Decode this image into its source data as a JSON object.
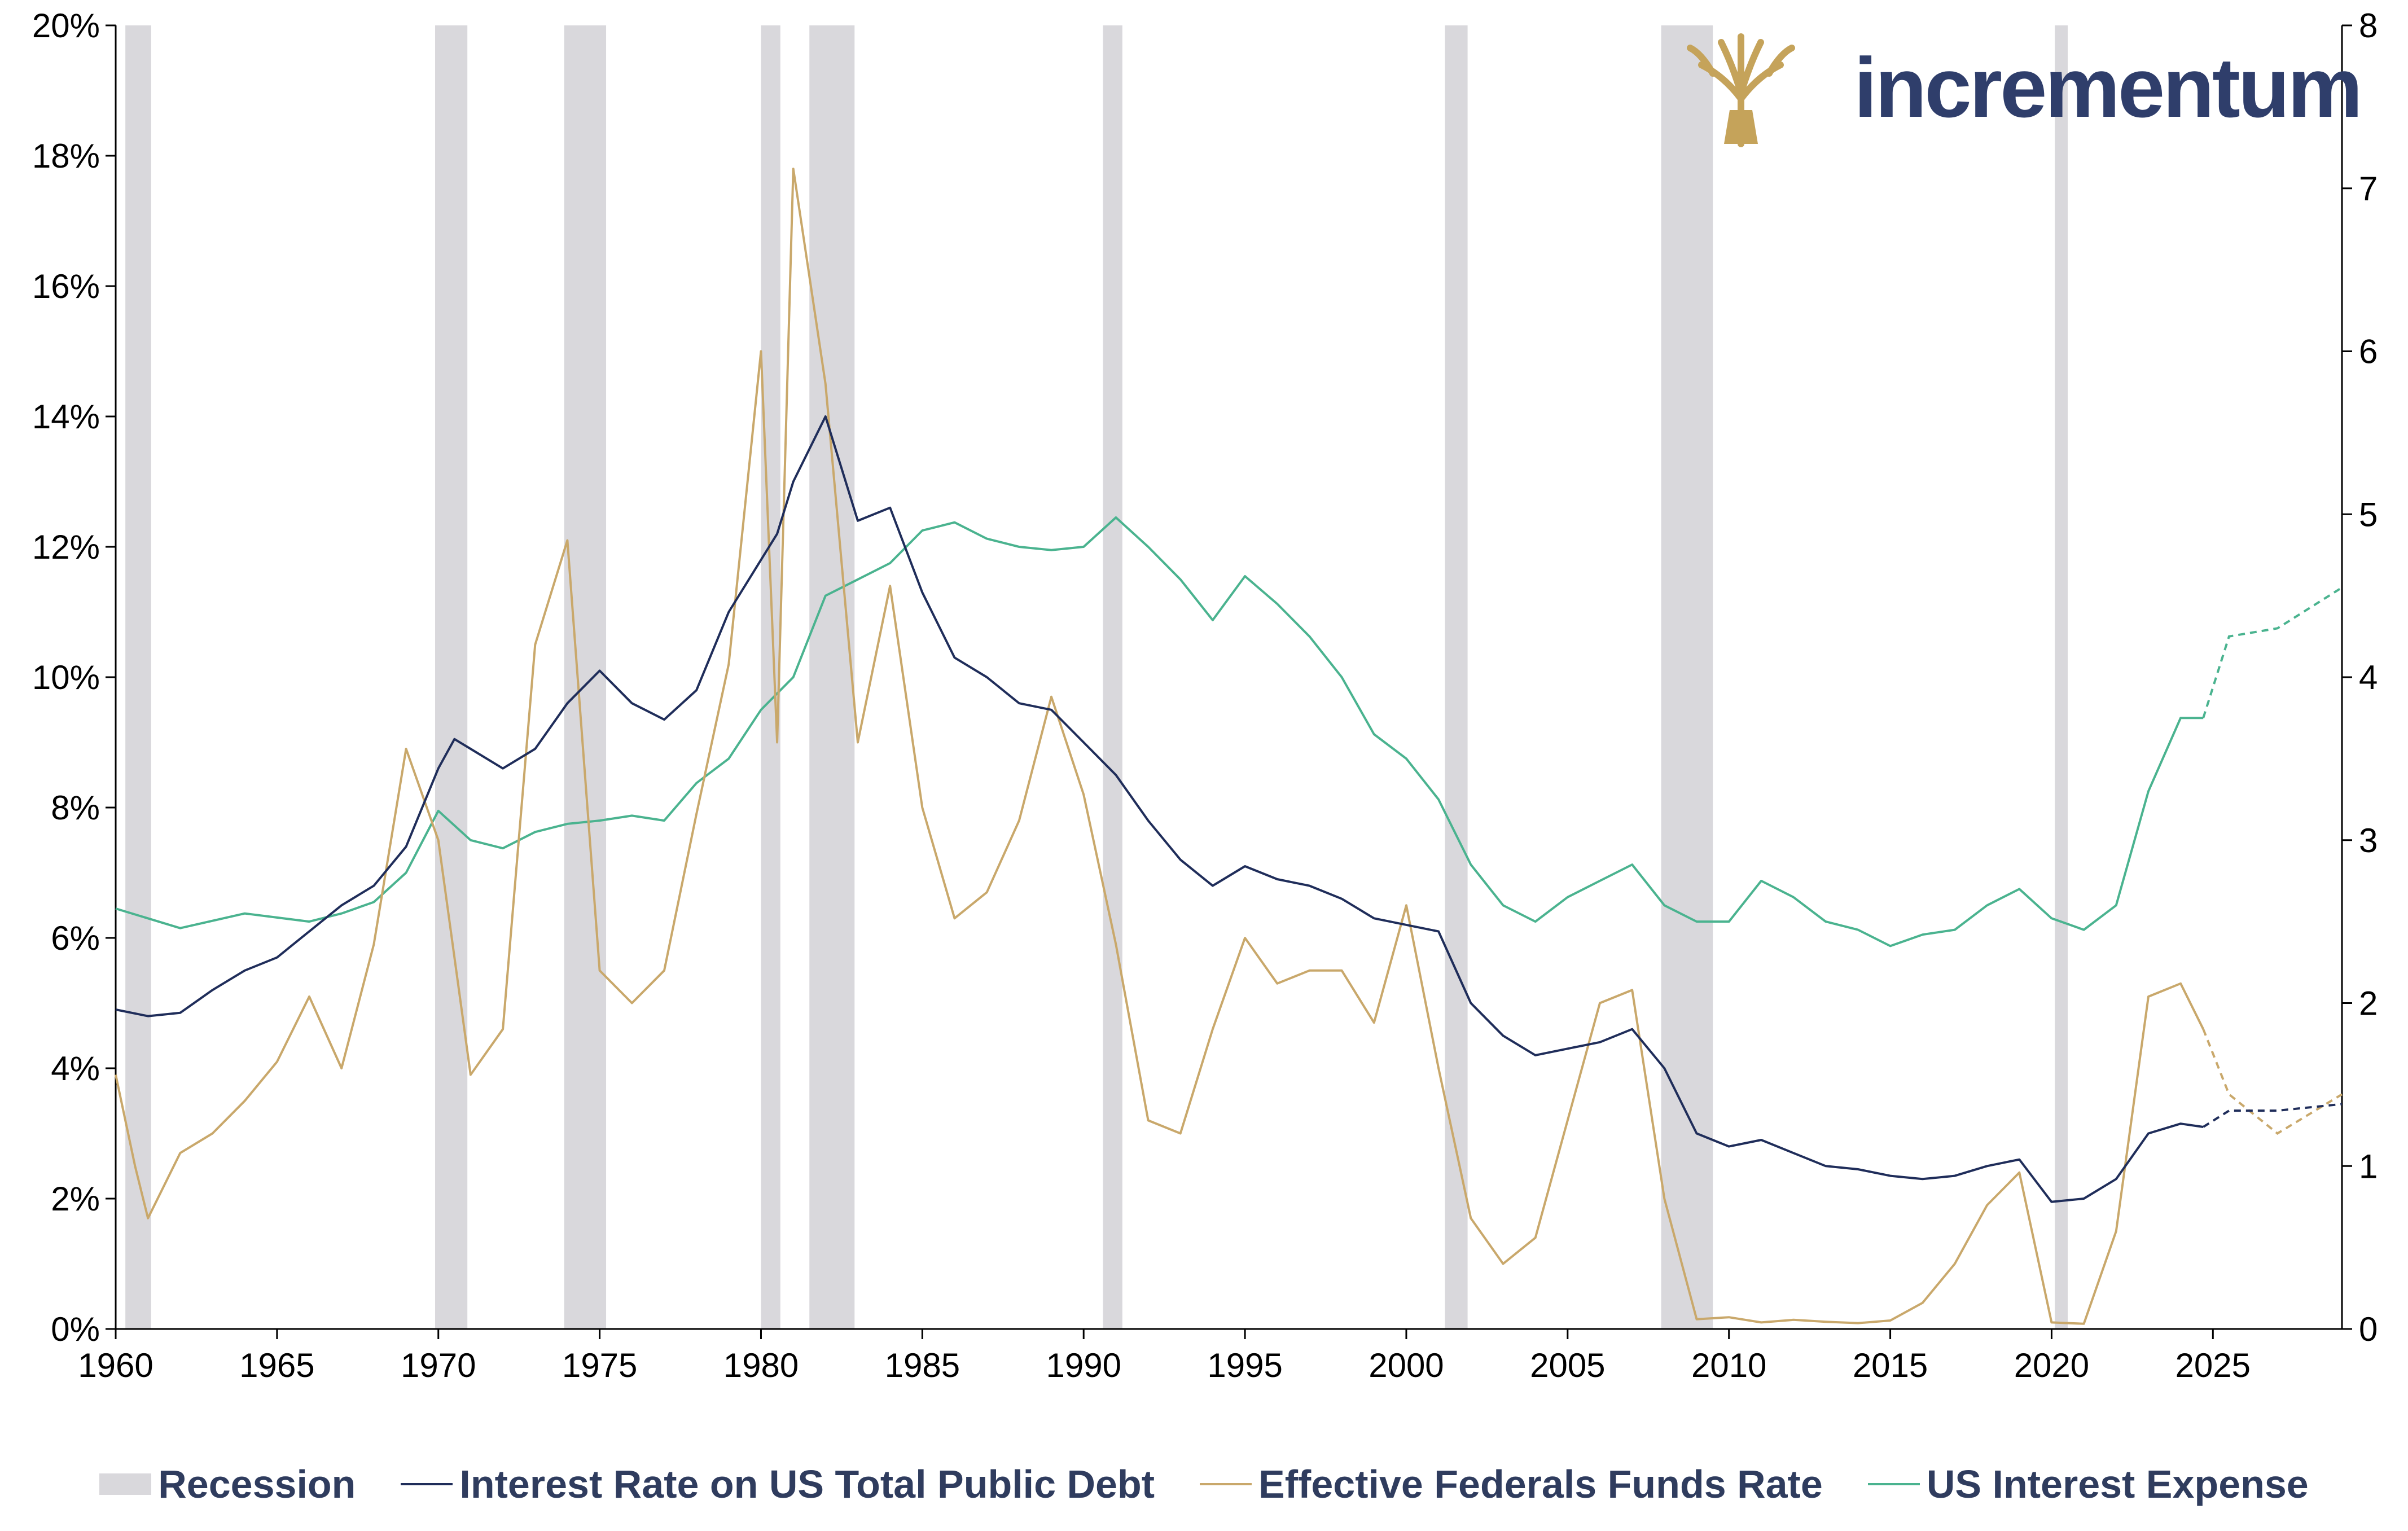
{
  "logo": {
    "text": "incrementum",
    "icon": "tree-icon",
    "gold": "#c5a35a",
    "navy": "#2f3e6b"
  },
  "colors": {
    "recession": "#d9d8dc",
    "debt_rate": "#1f2d5a",
    "fed_funds": "#c9a86b",
    "interest_expense": "#4ab38f"
  },
  "legend": {
    "recession": "Recession",
    "debt_rate": "Interest Rate on US Total Public Debt",
    "fed_funds": "Effective Federals Funds Rate",
    "interest_expense": "US Interest Expense"
  },
  "chart_data": {
    "type": "line",
    "x_range": [
      1960,
      2029
    ],
    "x_ticks": [
      "1960",
      "1965",
      "1970",
      "1975",
      "1980",
      "1985",
      "1990",
      "1995",
      "2000",
      "2005",
      "2010",
      "2015",
      "2020",
      "2025"
    ],
    "y_left": {
      "range": [
        0,
        20
      ],
      "ticks": [
        "0%",
        "2%",
        "4%",
        "6%",
        "8%",
        "10%",
        "12%",
        "14%",
        "16%",
        "18%",
        "20%"
      ]
    },
    "y_right": {
      "range": [
        0,
        8
      ],
      "ticks": [
        "0",
        "1",
        "2",
        "3",
        "4",
        "5",
        "6",
        "7",
        "8"
      ]
    },
    "recessions": [
      [
        1960.3,
        1961.1
      ],
      [
        1969.9,
        1970.9
      ],
      [
        1973.9,
        1975.2
      ],
      [
        1980.0,
        1980.6
      ],
      [
        1981.5,
        1982.9
      ],
      [
        1990.6,
        1991.2
      ],
      [
        2001.2,
        2001.9
      ],
      [
        2007.9,
        2009.5
      ],
      [
        2020.1,
        2020.5
      ]
    ],
    "series": [
      {
        "name": "Interest Rate on US Total Public Debt",
        "axis": "left",
        "points": [
          [
            1960,
            4.9
          ],
          [
            1961,
            4.8
          ],
          [
            1962,
            4.85
          ],
          [
            1963,
            5.2
          ],
          [
            1964,
            5.5
          ],
          [
            1965,
            5.7
          ],
          [
            1966,
            6.1
          ],
          [
            1967,
            6.5
          ],
          [
            1968,
            6.8
          ],
          [
            1969,
            7.4
          ],
          [
            1970,
            8.6
          ],
          [
            1970.5,
            9.05
          ],
          [
            1971,
            8.9
          ],
          [
            1972,
            8.6
          ],
          [
            1973,
            8.9
          ],
          [
            1974,
            9.6
          ],
          [
            1975,
            10.1
          ],
          [
            1976,
            9.6
          ],
          [
            1977,
            9.35
          ],
          [
            1978,
            9.8
          ],
          [
            1979,
            11.0
          ],
          [
            1980,
            11.8
          ],
          [
            1980.5,
            12.2
          ],
          [
            1981,
            13.0
          ],
          [
            1982,
            14.0
          ],
          [
            1983,
            12.4
          ],
          [
            1984,
            12.6
          ],
          [
            1985,
            11.3
          ],
          [
            1986,
            10.3
          ],
          [
            1987,
            10.0
          ],
          [
            1988,
            9.6
          ],
          [
            1989,
            9.5
          ],
          [
            1990,
            9.0
          ],
          [
            1991,
            8.5
          ],
          [
            1992,
            7.8
          ],
          [
            1993,
            7.2
          ],
          [
            1994,
            6.8
          ],
          [
            1995,
            7.1
          ],
          [
            1996,
            6.9
          ],
          [
            1997,
            6.8
          ],
          [
            1998,
            6.6
          ],
          [
            1999,
            6.3
          ],
          [
            2000,
            6.2
          ],
          [
            2001,
            6.1
          ],
          [
            2002,
            5.0
          ],
          [
            2003,
            4.5
          ],
          [
            2004,
            4.2
          ],
          [
            2005,
            4.3
          ],
          [
            2006,
            4.4
          ],
          [
            2007,
            4.6
          ],
          [
            2008,
            4.0
          ],
          [
            2009,
            3.0
          ],
          [
            2010,
            2.8
          ],
          [
            2011,
            2.9
          ],
          [
            2012,
            2.7
          ],
          [
            2013,
            2.5
          ],
          [
            2014,
            2.45
          ],
          [
            2015,
            2.35
          ],
          [
            2016,
            2.3
          ],
          [
            2017,
            2.35
          ],
          [
            2018,
            2.5
          ],
          [
            2019,
            2.6
          ],
          [
            2020,
            1.95
          ],
          [
            2021,
            2.0
          ],
          [
            2022,
            2.3
          ],
          [
            2023,
            3.0
          ],
          [
            2024,
            3.15
          ],
          [
            2024.7,
            3.1
          ]
        ],
        "projection": [
          [
            2024.7,
            3.1
          ],
          [
            2025.5,
            3.35
          ],
          [
            2027,
            3.35
          ],
          [
            2029,
            3.45
          ]
        ]
      },
      {
        "name": "Effective Federals Funds Rate",
        "axis": "left",
        "points": [
          [
            1960,
            3.9
          ],
          [
            1960.6,
            2.5
          ],
          [
            1961,
            1.7
          ],
          [
            1962,
            2.7
          ],
          [
            1963,
            3.0
          ],
          [
            1964,
            3.5
          ],
          [
            1965,
            4.1
          ],
          [
            1966,
            5.1
          ],
          [
            1967,
            4.0
          ],
          [
            1968,
            5.9
          ],
          [
            1969,
            8.9
          ],
          [
            1970,
            7.5
          ],
          [
            1971,
            3.9
          ],
          [
            1972,
            4.6
          ],
          [
            1973,
            10.5
          ],
          [
            1974,
            12.1
          ],
          [
            1975,
            5.5
          ],
          [
            1976,
            5.0
          ],
          [
            1977,
            5.5
          ],
          [
            1978,
            7.9
          ],
          [
            1979,
            10.2
          ],
          [
            1980,
            15.0
          ],
          [
            1980.5,
            9.0
          ],
          [
            1981,
            17.8
          ],
          [
            1982,
            14.5
          ],
          [
            1983,
            9.0
          ],
          [
            1984,
            11.4
          ],
          [
            1985,
            8.0
          ],
          [
            1986,
            6.3
          ],
          [
            1987,
            6.7
          ],
          [
            1988,
            7.8
          ],
          [
            1989,
            9.7
          ],
          [
            1990,
            8.2
          ],
          [
            1991,
            5.9
          ],
          [
            1992,
            3.2
          ],
          [
            1993,
            3.0
          ],
          [
            1994,
            4.6
          ],
          [
            1995,
            6.0
          ],
          [
            1996,
            5.3
          ],
          [
            1997,
            5.5
          ],
          [
            1998,
            5.5
          ],
          [
            1999,
            4.7
          ],
          [
            2000,
            6.5
          ],
          [
            2001,
            4.0
          ],
          [
            2002,
            1.7
          ],
          [
            2003,
            1.0
          ],
          [
            2004,
            1.4
          ],
          [
            2005,
            3.2
          ],
          [
            2006,
            5.0
          ],
          [
            2007,
            5.2
          ],
          [
            2008,
            2.0
          ],
          [
            2009,
            0.15
          ],
          [
            2010,
            0.18
          ],
          [
            2011,
            0.1
          ],
          [
            2012,
            0.14
          ],
          [
            2013,
            0.11
          ],
          [
            2014,
            0.09
          ],
          [
            2015,
            0.13
          ],
          [
            2016,
            0.4
          ],
          [
            2017,
            1.0
          ],
          [
            2018,
            1.9
          ],
          [
            2019,
            2.4
          ],
          [
            2020,
            0.1
          ],
          [
            2021,
            0.08
          ],
          [
            2022,
            1.5
          ],
          [
            2023,
            5.1
          ],
          [
            2024,
            5.3
          ],
          [
            2024.7,
            4.6
          ]
        ],
        "projection": [
          [
            2024.7,
            4.6
          ],
          [
            2025.5,
            3.6
          ],
          [
            2027,
            3.0
          ],
          [
            2029,
            3.6
          ]
        ]
      },
      {
        "name": "US Interest Expense",
        "axis": "right",
        "points": [
          [
            1960,
            2.58
          ],
          [
            1962,
            2.46
          ],
          [
            1964,
            2.55
          ],
          [
            1966,
            2.5
          ],
          [
            1967,
            2.55
          ],
          [
            1968,
            2.62
          ],
          [
            1969,
            2.8
          ],
          [
            1970,
            3.18
          ],
          [
            1971,
            3.0
          ],
          [
            1972,
            2.95
          ],
          [
            1973,
            3.05
          ],
          [
            1974,
            3.1
          ],
          [
            1975,
            3.12
          ],
          [
            1976,
            3.15
          ],
          [
            1977,
            3.12
          ],
          [
            1978,
            3.35
          ],
          [
            1979,
            3.5
          ],
          [
            1980,
            3.8
          ],
          [
            1981,
            4.0
          ],
          [
            1982,
            4.5
          ],
          [
            1983,
            4.6
          ],
          [
            1984,
            4.7
          ],
          [
            1985,
            4.9
          ],
          [
            1986,
            4.95
          ],
          [
            1987,
            4.85
          ],
          [
            1988,
            4.8
          ],
          [
            1989,
            4.78
          ],
          [
            1990,
            4.8
          ],
          [
            1991,
            4.98
          ],
          [
            1992,
            4.8
          ],
          [
            1993,
            4.6
          ],
          [
            1994,
            4.35
          ],
          [
            1995,
            4.62
          ],
          [
            1996,
            4.45
          ],
          [
            1997,
            4.25
          ],
          [
            1998,
            4.0
          ],
          [
            1999,
            3.65
          ],
          [
            2000,
            3.5
          ],
          [
            2001,
            3.25
          ],
          [
            2002,
            2.85
          ],
          [
            2003,
            2.6
          ],
          [
            2004,
            2.5
          ],
          [
            2005,
            2.65
          ],
          [
            2006,
            2.75
          ],
          [
            2007,
            2.85
          ],
          [
            2008,
            2.6
          ],
          [
            2009,
            2.5
          ],
          [
            2010,
            2.5
          ],
          [
            2011,
            2.75
          ],
          [
            2012,
            2.65
          ],
          [
            2013,
            2.5
          ],
          [
            2014,
            2.45
          ],
          [
            2015,
            2.35
          ],
          [
            2016,
            2.42
          ],
          [
            2017,
            2.45
          ],
          [
            2018,
            2.6
          ],
          [
            2019,
            2.7
          ],
          [
            2020,
            2.52
          ],
          [
            2021,
            2.45
          ],
          [
            2022,
            2.6
          ],
          [
            2023,
            3.3
          ],
          [
            2024,
            3.75
          ],
          [
            2024.7,
            3.75
          ]
        ],
        "projection": [
          [
            2024.7,
            3.75
          ],
          [
            2025.5,
            4.25
          ],
          [
            2027,
            4.3
          ],
          [
            2029,
            4.55
          ]
        ]
      }
    ]
  }
}
